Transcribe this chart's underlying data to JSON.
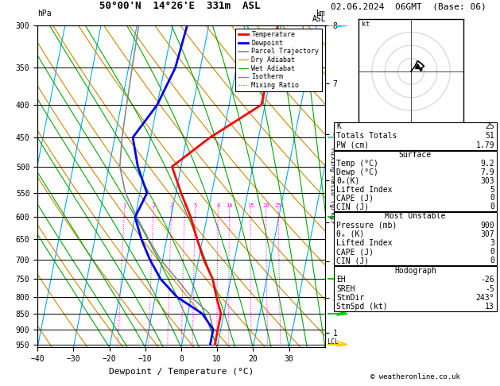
{
  "title_left": "50°00'N  14°26'E  331m  ASL",
  "title_right": "02.06.2024  06GMT  (Base: 06)",
  "xlabel": "Dewpoint / Temperature (°C)",
  "bg_color": "#ffffff",
  "pressure_levels": [
    300,
    350,
    400,
    450,
    500,
    550,
    600,
    650,
    700,
    750,
    800,
    850,
    900,
    950
  ],
  "temp_x": [
    9.2,
    9.2,
    9.2,
    7.0,
    5.0,
    1.5,
    -1.5,
    -4.5,
    -8.5,
    -12.5,
    -3.5,
    9.0,
    9.2,
    9.2
  ],
  "temp_p": [
    950,
    900,
    850,
    800,
    750,
    700,
    650,
    600,
    550,
    500,
    450,
    400,
    350,
    300
  ],
  "dewp_x": [
    7.9,
    7.9,
    4.0,
    -4.0,
    -9.5,
    -13.5,
    -17.0,
    -20.0,
    -18.0,
    -22.0,
    -25.0,
    -20.0,
    -17.0,
    -16.0
  ],
  "dewp_p": [
    950,
    900,
    850,
    800,
    750,
    700,
    650,
    600,
    550,
    500,
    450,
    400,
    350,
    300
  ],
  "parcel_x": [
    7.9,
    7.9,
    6.0,
    0.0,
    -5.0,
    -10.5,
    -15.0,
    -19.5,
    -24.0,
    -27.0,
    -28.0,
    -28.5,
    -29.0,
    -29.5
  ],
  "parcel_p": [
    950,
    900,
    850,
    800,
    750,
    700,
    650,
    600,
    550,
    500,
    450,
    400,
    350,
    300
  ],
  "temp_color": "#ff0000",
  "dewp_color": "#0000ee",
  "parcel_color": "#888888",
  "dry_adiabat_color": "#cc8800",
  "wet_adiabat_color": "#00aa00",
  "isotherm_color": "#00aaff",
  "mixing_ratio_color": "#ff00ff",
  "legend_items": [
    {
      "label": "Temperature",
      "color": "#ff0000",
      "lw": 2.0,
      "ls": "-"
    },
    {
      "label": "Dewpoint",
      "color": "#0000ee",
      "lw": 2.0,
      "ls": "-"
    },
    {
      "label": "Parcel Trajectory",
      "color": "#888888",
      "lw": 1.2,
      "ls": "-"
    },
    {
      "label": "Dry Adiabat",
      "color": "#cc8800",
      "lw": 0.8,
      "ls": "-"
    },
    {
      "label": "Wet Adiabat",
      "color": "#00aa00",
      "lw": 0.8,
      "ls": "-"
    },
    {
      "label": "Isotherm",
      "color": "#00aaff",
      "lw": 0.8,
      "ls": "-"
    },
    {
      "label": "Mixing Ratio",
      "color": "#ff00ff",
      "lw": 0.8,
      "ls": ":"
    }
  ],
  "xlim": [
    -40,
    40
  ],
  "pmin": 300,
  "pmax": 960,
  "xticks": [
    -40,
    -30,
    -20,
    -10,
    0,
    10,
    20,
    30
  ],
  "skew_factor": 35.0,
  "km_ticks": [
    1,
    2,
    3,
    4,
    5,
    6,
    7,
    8
  ],
  "km_pressures": [
    908,
    795,
    690,
    595,
    507,
    425,
    350,
    280
  ],
  "mixing_ratio_label_p": 600,
  "mixing_ratio_values": [
    1,
    2,
    3,
    4,
    5,
    8,
    10,
    15,
    20,
    25
  ],
  "wind_barb_colors": [
    "#00ccff",
    "#00ccff",
    "#00cc00",
    "#00cc00",
    "#00cc00",
    "#ffcc00"
  ],
  "wind_barb_pressures": [
    300,
    450,
    600,
    750,
    850,
    950
  ],
  "hodo_u": [
    0,
    3,
    5,
    8,
    10,
    7
  ],
  "hodo_v": [
    0,
    4,
    8,
    6,
    4,
    2
  ],
  "hodo_storm_u": 5,
  "hodo_storm_v": 4,
  "info_lines": [
    "K                25",
    "Totals Totals    51",
    "PW (cm)        1.79"
  ],
  "surface_title": "Surface",
  "surface_lines": [
    "Temp (°C)       9.2",
    "Dewp (°C)       7.9",
    "θₑ(K)          303",
    "Lifted Index      5",
    "CAPE (J)          0",
    "CIN (J)           0"
  ],
  "unstable_title": "Most Unstable",
  "unstable_lines": [
    "Pressure (mb) 900",
    "θₑ (K)          307",
    "Lifted Index    3",
    "CAPE (J)        0",
    "CIN (J)         0"
  ],
  "hodograph_title": "Hodograph",
  "hodograph_lines": [
    "EH            -26",
    "SREH           -5",
    "StmDir       243°",
    "StmSpd (kt)   13"
  ],
  "copyright": "© weatheronline.co.uk"
}
